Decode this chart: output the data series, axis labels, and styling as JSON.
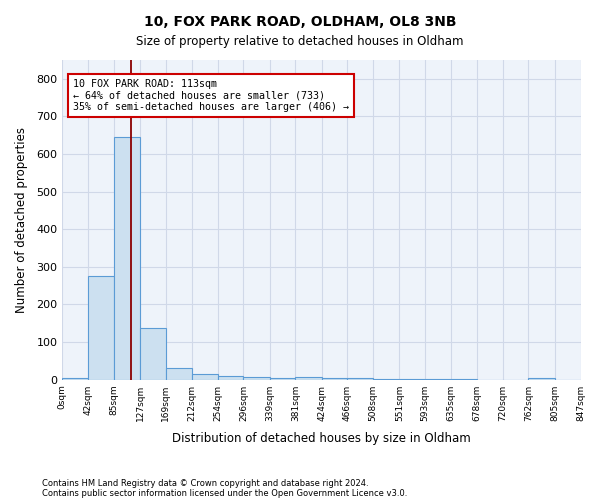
{
  "title1": "10, FOX PARK ROAD, OLDHAM, OL8 3NB",
  "title2": "Size of property relative to detached houses in Oldham",
  "xlabel": "Distribution of detached houses by size in Oldham",
  "ylabel": "Number of detached properties",
  "footnote1": "Contains HM Land Registry data © Crown copyright and database right 2024.",
  "footnote2": "Contains public sector information licensed under the Open Government Licence v3.0.",
  "bar_edges": [
    0,
    42,
    85,
    127,
    169,
    212,
    254,
    296,
    339,
    381,
    424,
    466,
    508,
    551,
    593,
    635,
    678,
    720,
    762,
    805,
    847
  ],
  "bar_heights": [
    5,
    275,
    645,
    138,
    32,
    15,
    10,
    7,
    5,
    8,
    5,
    4,
    3,
    1,
    1,
    1,
    0,
    0,
    5,
    0
  ],
  "bar_color": "#cce0f0",
  "bar_edge_color": "#5b9bd5",
  "property_size": 113,
  "property_line_color": "#8b0000",
  "annotation_text": "10 FOX PARK ROAD: 113sqm\n← 64% of detached houses are smaller (733)\n35% of semi-detached houses are larger (406) →",
  "annotation_box_color": "#ffffff",
  "annotation_box_edge": "#cc0000",
  "ylim": [
    0,
    850
  ],
  "xlim": [
    0,
    847
  ],
  "yticks": [
    0,
    100,
    200,
    300,
    400,
    500,
    600,
    700,
    800
  ],
  "xtick_labels": [
    "0sqm",
    "42sqm",
    "85sqm",
    "127sqm",
    "169sqm",
    "212sqm",
    "254sqm",
    "296sqm",
    "339sqm",
    "381sqm",
    "424sqm",
    "466sqm",
    "508sqm",
    "551sqm",
    "593sqm",
    "635sqm",
    "678sqm",
    "720sqm",
    "762sqm",
    "805sqm",
    "847sqm"
  ],
  "grid_color": "#d0d8e8",
  "background_color": "#eef3fa"
}
